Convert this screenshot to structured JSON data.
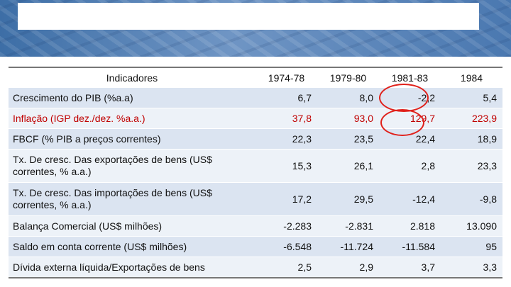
{
  "table": {
    "headers": [
      "Indicadores",
      "1974-78",
      "1979-80",
      "1981-83",
      "1984"
    ],
    "rows": [
      {
        "label": "Crescimento do PIB (%a.a)",
        "values": [
          "6,7",
          "8,0",
          "-2,2",
          "5,4"
        ]
      },
      {
        "label": "Inflação (IGP dez./dez. %a.a.)",
        "values": [
          "37,8",
          "93,0",
          "129,7",
          "223,9"
        ]
      },
      {
        "label": "FBCF (% PIB a preços correntes)",
        "values": [
          "22,3",
          "23,5",
          "22,4",
          "18,9"
        ]
      },
      {
        "label": "Tx. De cresc. Das exportações de bens (US$ correntes, % a.a.)",
        "values": [
          "15,3",
          "26,1",
          "2,8",
          "23,3"
        ]
      },
      {
        "label": "Tx. De cresc. Das importações de bens (US$ correntes, % a.a.)",
        "values": [
          "17,2",
          "29,5",
          "-12,4",
          "-9,8"
        ]
      },
      {
        "label": "Balança Comercial (US$ milhões)",
        "values": [
          "-2.283",
          "-2.831",
          "2.818",
          "13.090"
        ]
      },
      {
        "label": "Saldo em conta corrente (US$ milhões)",
        "values": [
          "-6.548",
          "-11.724",
          "-11.584",
          "95"
        ]
      },
      {
        "label": "Dívida externa líquida/Exportações de bens",
        "values": [
          "2,5",
          "2,9",
          "3,7",
          "3,3"
        ]
      }
    ]
  },
  "colors": {
    "header_band": "#4a78b0",
    "row_odd": "#dbe4f1",
    "row_even": "#edf2f8",
    "inflation_text": "#c00000",
    "annotation_circle": "#e0201a"
  }
}
